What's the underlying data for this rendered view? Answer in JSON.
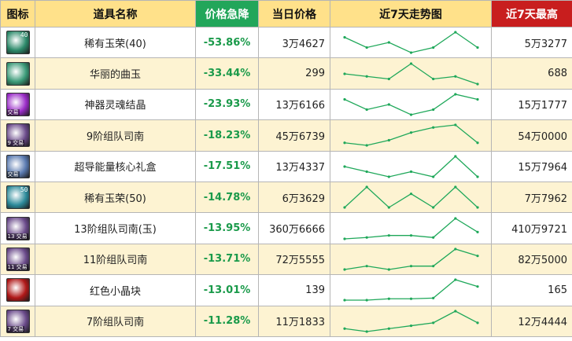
{
  "headers": {
    "icon": "图标",
    "name": "道具名称",
    "change": "价格急降",
    "price": "当日价格",
    "trend": "近7天走势图",
    "high": "近7天最高"
  },
  "colors": {
    "header_bg": "#ffe18a",
    "header_selected_bg": "#22a65a",
    "header_high_bg": "#c81e1e",
    "row_alt_bg": "#fdf3d2",
    "percent_green": "#1a9a4a",
    "spark_green": "#1fa85a"
  },
  "rows": [
    {
      "name": "稀有玉荣(40)",
      "change": "-53.86%",
      "price": "3万4627",
      "high": "5万3277",
      "icon": "jade-orb-icon",
      "badge": "40",
      "tag": "",
      "icon_color": "#2c8a6a",
      "trend": [
        4,
        2,
        3,
        1,
        2,
        5,
        2
      ]
    },
    {
      "name": "华丽的曲玉",
      "change": "-33.44%",
      "price": "299",
      "high": "688",
      "icon": "curved-jade-icon",
      "badge": "",
      "tag": "",
      "icon_color": "#3a9a78",
      "trend": [
        3,
        2.5,
        2,
        5,
        2,
        2.5,
        1
      ]
    },
    {
      "name": "神器灵魂结晶",
      "change": "-23.93%",
      "price": "13万6166",
      "high": "15万1777",
      "icon": "soul-crystal-icon",
      "badge": "",
      "tag": "交易",
      "icon_color": "#9a2cc8",
      "trend": [
        4,
        2,
        3,
        1,
        2,
        5,
        4
      ]
    },
    {
      "name": "9阶组队司南",
      "change": "-18.23%",
      "price": "45万6739",
      "high": "54万0000",
      "icon": "compass-icon",
      "badge": "",
      "tag": "9 交易",
      "icon_color": "#6a4a8a",
      "trend": [
        1,
        0.5,
        1.5,
        3,
        4,
        4.5,
        1
      ]
    },
    {
      "name": "超导能量核心礼盒",
      "change": "-17.51%",
      "price": "13万4337",
      "high": "15万7964",
      "icon": "energy-core-box-icon",
      "badge": "",
      "tag": "交易",
      "icon_color": "#5a7ab0",
      "trend": [
        2,
        1.5,
        1,
        1.5,
        1,
        3,
        1
      ]
    },
    {
      "name": "稀有玉荣(50)",
      "change": "-14.78%",
      "price": "6万3629",
      "high": "7万7962",
      "icon": "jade-orb-icon",
      "badge": "50",
      "tag": "",
      "icon_color": "#2c8a9a",
      "trend": [
        1,
        4,
        1,
        3,
        1,
        4,
        1
      ]
    },
    {
      "name": "13阶组队司南(玉)",
      "change": "-13.95%",
      "price": "360万6666",
      "high": "410万9721",
      "icon": "compass-jade-icon",
      "badge": "",
      "tag": "13 交易",
      "icon_color": "#6a4a8a",
      "trend": [
        1,
        1.2,
        1.5,
        1.5,
        1.2,
        4,
        2
      ]
    },
    {
      "name": "11阶组队司南",
      "change": "-13.71%",
      "price": "72万5555",
      "high": "82万5000",
      "icon": "compass-icon",
      "badge": "",
      "tag": "11 交易",
      "icon_color": "#6a4a8a",
      "trend": [
        1,
        1.5,
        1,
        1.5,
        1.5,
        4,
        3
      ]
    },
    {
      "name": "红色小晶块",
      "change": "-13.01%",
      "price": "139",
      "high": "165",
      "icon": "red-crystal-icon",
      "badge": "",
      "tag": "",
      "icon_color": "#b01818",
      "trend": [
        1,
        1,
        1.2,
        1.2,
        1.3,
        4,
        3
      ]
    },
    {
      "name": "7阶组队司南",
      "change": "-11.28%",
      "price": "11万1833",
      "high": "12万4444",
      "icon": "compass-icon",
      "badge": "",
      "tag": "7 交易",
      "icon_color": "#6a4a8a",
      "trend": [
        1,
        0.5,
        1,
        1.5,
        2,
        4,
        2
      ]
    }
  ]
}
